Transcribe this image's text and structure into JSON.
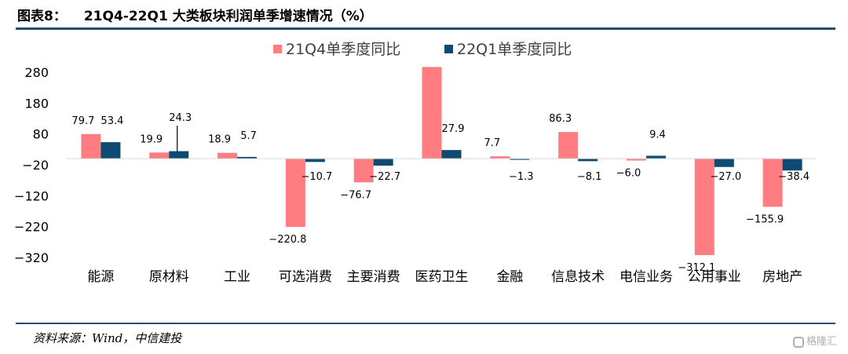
{
  "header": {
    "figure_label": "图表8：",
    "title": "21Q4-22Q1 大类板块利润单季增速情况（%）"
  },
  "footer": {
    "source": "资料来源：Wind，中信建投",
    "watermark": "格隆汇"
  },
  "colors": {
    "series_1": "#ff7c80",
    "series_2": "#0e4a72",
    "rule": "#1f4e79"
  },
  "chart_data": {
    "type": "bar",
    "title": "",
    "xlabel": "",
    "ylabel": "",
    "categories": [
      "能源",
      "原材料",
      "工业",
      "可选消费",
      "主要消费",
      "医药卫生",
      "金融",
      "信息技术",
      "电信业务",
      "公用事业",
      "房地产"
    ],
    "series": [
      {
        "name": "21Q4单季度同比",
        "values": [
          79.7,
          19.9,
          18.9,
          -220.8,
          -76.7,
          297.0,
          7.7,
          86.3,
          -6.0,
          -312.1,
          -155.9
        ],
        "labels": [
          "79.7",
          "19.9",
          "18.9",
          "-220.8",
          "-76.7",
          "",
          "7.7",
          "86.3",
          "-6.0",
          "-312.1",
          "-155.9"
        ]
      },
      {
        "name": "22Q1单季度同比",
        "values": [
          53.4,
          24.3,
          5.7,
          -10.7,
          -22.7,
          27.9,
          -1.3,
          -8.1,
          9.4,
          -27.0,
          -38.4
        ],
        "labels": [
          "53.4",
          "24.3",
          "5.7",
          "-10.7",
          "-22.7",
          "27.9",
          "-1.3",
          "-8.1",
          "9.4",
          "-27.0",
          "-38.4"
        ]
      }
    ],
    "ylim": [
      -320,
      300
    ],
    "yticks": [
      280,
      180,
      80,
      -20,
      -120,
      -220,
      -320
    ],
    "grid": false,
    "legend": "top-center"
  }
}
